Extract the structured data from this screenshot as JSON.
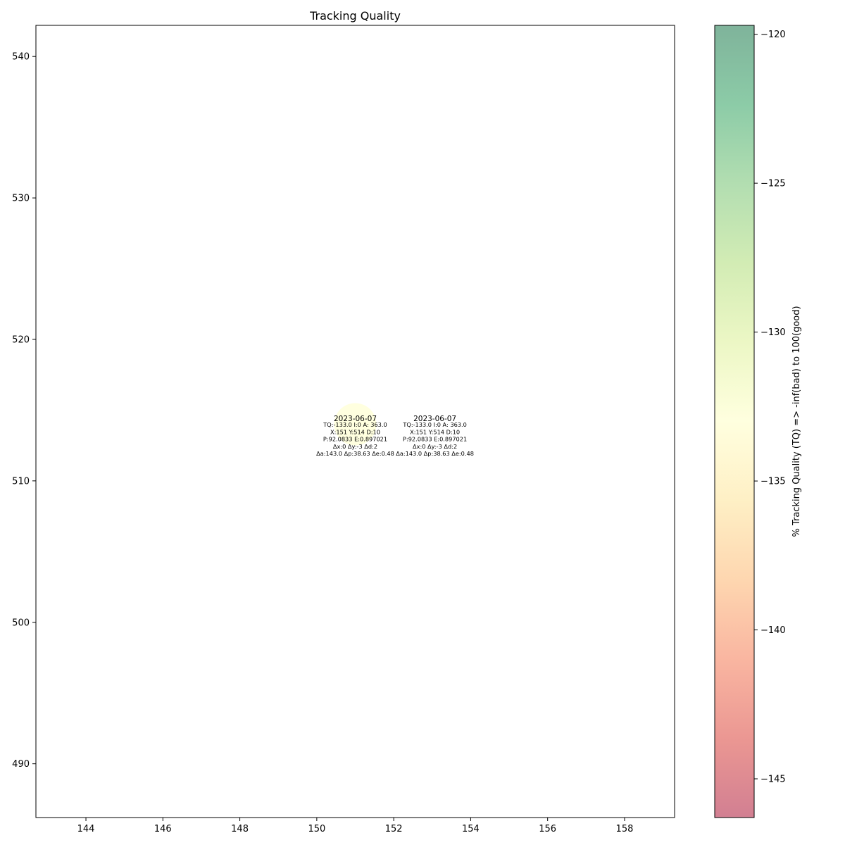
{
  "chart_data": {
    "type": "scatter",
    "title": "Tracking Quality",
    "xlabel": "",
    "ylabel": "",
    "xlim": [
      142.7,
      159.3
    ],
    "ylim": [
      486.2,
      542.2
    ],
    "xticks": [
      144,
      146,
      148,
      150,
      152,
      154,
      156,
      158
    ],
    "yticks": [
      490,
      500,
      510,
      520,
      530,
      540
    ],
    "grid": false,
    "points": [
      {
        "x": 151,
        "y": 514,
        "tq": -133.0
      }
    ],
    "annotations": [
      {
        "x": 151.0,
        "y": 513.2,
        "date": "2023-06-07",
        "lines": [
          "TQ:-133.0 I:0 A: 363.0",
          "X:151 Y:514 D:10",
          "P:92.0833 E:0.897021",
          "Δx:0 Δy:-3 Δd:2",
          "Δa:143.0 Δp:38.63 Δe:0.48"
        ]
      },
      {
        "x": 153.07,
        "y": 513.2,
        "date": "2023-06-07",
        "lines": [
          "TQ:-133.0 I:0 A: 363.0",
          "X:151 Y:514 D:10",
          "P:92.0833 E:0.897021",
          "Δx:0 Δy:-3 Δd:2",
          "Δa:143.0 Δp:38.63 Δe:0.48"
        ]
      }
    ],
    "colorbar": {
      "label": "% Tracking Quality (TQ) =>  -inf(bad) to 100(good)",
      "vmin": -146.3,
      "vmax": -119.7,
      "ticks": [
        -145,
        -140,
        -135,
        -130,
        -125,
        -120
      ],
      "tick_labels": [
        "−145",
        "−140",
        "−135",
        "−130",
        "−125",
        "−120"
      ],
      "colormap": "RdYlGn",
      "alpha": 0.5
    }
  }
}
